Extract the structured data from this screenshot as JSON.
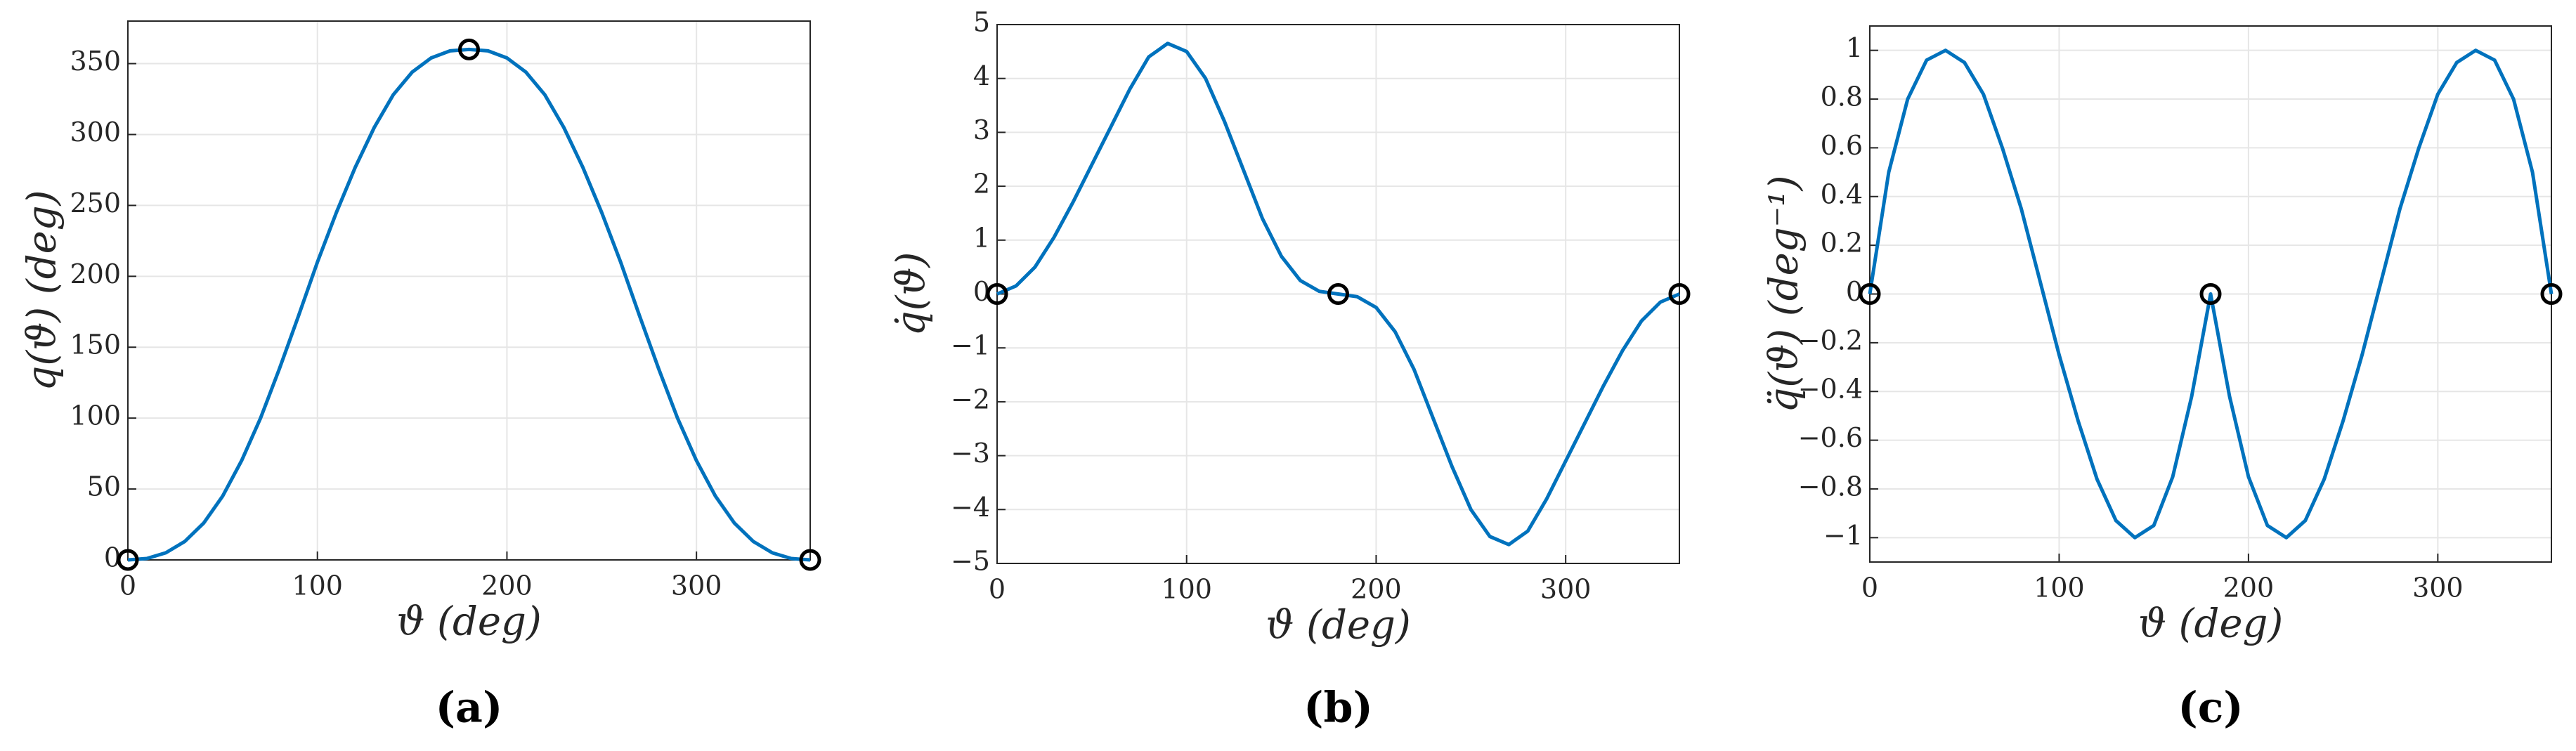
{
  "chart_data": [
    {
      "type": "line",
      "ylabel": "q(ϑ) (deg)",
      "xlabel": "ϑ (deg)",
      "caption": "(a)",
      "color": "#0072bd",
      "grid": true,
      "xlim": [
        0,
        360
      ],
      "ylim": [
        0,
        380
      ],
      "xticks": [
        0,
        100,
        200,
        300
      ],
      "yticks": [
        0,
        50,
        100,
        150,
        200,
        250,
        300,
        350
      ],
      "x": [
        0,
        10,
        20,
        30,
        40,
        50,
        60,
        70,
        80,
        90,
        100,
        110,
        120,
        130,
        140,
        150,
        160,
        170,
        180,
        190,
        200,
        210,
        220,
        230,
        240,
        250,
        260,
        270,
        280,
        290,
        300,
        310,
        320,
        330,
        340,
        350,
        360
      ],
      "values": [
        0,
        1,
        5,
        13,
        26,
        45,
        70,
        100,
        135,
        172,
        210,
        245,
        277,
        305,
        328,
        344,
        354,
        359,
        360,
        359,
        354,
        344,
        328,
        305,
        277,
        245,
        210,
        172,
        135,
        100,
        70,
        45,
        26,
        13,
        5,
        1,
        0
      ],
      "markers": {
        "color": "#000000",
        "x": [
          0,
          180,
          360
        ],
        "values": [
          0,
          360,
          0
        ]
      }
    },
    {
      "type": "line",
      "ylabel": "q̇(ϑ)",
      "xlabel": "ϑ (deg)",
      "caption": "(b)",
      "color": "#0072bd",
      "grid": true,
      "xlim": [
        0,
        360
      ],
      "ylim": [
        -5,
        5
      ],
      "xticks": [
        0,
        100,
        200,
        300
      ],
      "yticks": [
        {
          "value": -5,
          "label": "−5"
        },
        {
          "value": -4,
          "label": "−4"
        },
        {
          "value": -3,
          "label": "−3"
        },
        {
          "value": -2,
          "label": "−2"
        },
        {
          "value": -1,
          "label": "−1"
        },
        0,
        1,
        2,
        3,
        4,
        5
      ],
      "x": [
        0,
        10,
        20,
        30,
        40,
        50,
        60,
        70,
        80,
        90,
        100,
        110,
        120,
        130,
        140,
        150,
        160,
        170,
        180,
        190,
        200,
        210,
        220,
        230,
        240,
        250,
        260,
        270,
        280,
        290,
        300,
        310,
        320,
        330,
        340,
        350,
        360
      ],
      "values": [
        0,
        0.15,
        0.5,
        1.05,
        1.7,
        2.4,
        3.1,
        3.8,
        4.4,
        4.65,
        4.5,
        4.0,
        3.2,
        2.3,
        1.4,
        0.7,
        0.25,
        0.05,
        0,
        -0.05,
        -0.25,
        -0.7,
        -1.4,
        -2.3,
        -3.2,
        -4.0,
        -4.5,
        -4.65,
        -4.4,
        -3.8,
        -3.1,
        -2.4,
        -1.7,
        -1.05,
        -0.5,
        -0.15,
        0
      ],
      "markers": {
        "color": "#000000",
        "x": [
          0,
          180,
          360
        ],
        "values": [
          0,
          0,
          0
        ]
      }
    },
    {
      "type": "line",
      "ylabel": "q̈(ϑ) (deg⁻¹)",
      "xlabel": "ϑ (deg)",
      "caption": "(c)",
      "color": "#0072bd",
      "grid": true,
      "xlim": [
        0,
        360
      ],
      "ylim": [
        -1.1,
        1.1
      ],
      "xticks": [
        0,
        100,
        200,
        300
      ],
      "yticks": [
        {
          "value": -1,
          "label": "−1"
        },
        {
          "value": -0.8,
          "label": "−0.8"
        },
        {
          "value": -0.6,
          "label": "−0.6"
        },
        {
          "value": -0.4,
          "label": "−0.4"
        },
        {
          "value": -0.2,
          "label": "−0.2"
        },
        0,
        0.2,
        0.4,
        0.6,
        0.8,
        1
      ],
      "x": [
        0,
        10,
        20,
        30,
        40,
        50,
        60,
        70,
        80,
        90,
        100,
        110,
        120,
        130,
        140,
        150,
        160,
        170,
        180,
        190,
        200,
        210,
        220,
        230,
        240,
        250,
        260,
        270,
        280,
        290,
        300,
        310,
        320,
        330,
        340,
        350,
        360
      ],
      "values": [
        0,
        0.5,
        0.8,
        0.96,
        1.0,
        0.95,
        0.82,
        0.6,
        0.35,
        0.05,
        -0.25,
        -0.52,
        -0.76,
        -0.93,
        -1.0,
        -0.95,
        -0.75,
        -0.42,
        0,
        -0.42,
        -0.75,
        -0.95,
        -1.0,
        -0.93,
        -0.76,
        -0.52,
        -0.25,
        0.05,
        0.35,
        0.6,
        0.82,
        0.95,
        1.0,
        0.96,
        0.8,
        0.5,
        0
      ],
      "markers": {
        "color": "#000000",
        "x": [
          0,
          180,
          360
        ],
        "values": [
          0,
          0,
          0
        ]
      }
    }
  ]
}
